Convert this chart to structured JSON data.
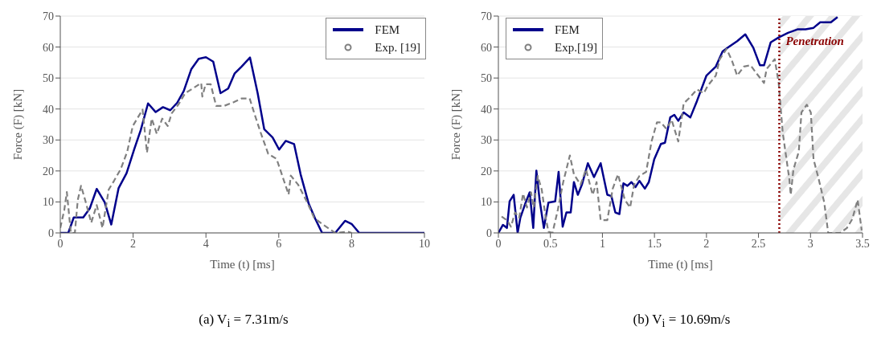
{
  "chart_data": [
    {
      "type": "line",
      "title": "(a) V$_{i}$ = 7.31m/s",
      "xlabel": "Time (t) [ms]",
      "ylabel": "Force (F) [kN]",
      "xlim": [
        0,
        10
      ],
      "xticks": [
        0,
        2,
        4,
        6,
        8,
        10
      ],
      "ylim": [
        0,
        70
      ],
      "yticks": [
        0,
        10,
        20,
        30,
        40,
        50,
        60,
        70
      ],
      "grid": "y",
      "legend": "top right",
      "series": [
        {
          "name": "FEM",
          "color": "#00008b",
          "line_style": "solid",
          "x": [
            0,
            0.22,
            0.37,
            0.63,
            0.81,
            1.0,
            1.22,
            1.4,
            1.6,
            1.82,
            2.03,
            2.21,
            2.41,
            2.62,
            2.82,
            3.02,
            3.21,
            3.39,
            3.6,
            3.8,
            4.0,
            4.2,
            4.4,
            4.61,
            4.79,
            4.98,
            5.21,
            5.42,
            5.6,
            5.83,
            6.01,
            6.19,
            6.42,
            6.6,
            6.82,
            7.0,
            7.19,
            7.55,
            7.82,
            8.0,
            8.21,
            10
          ],
          "values": [
            0,
            0,
            5,
            5,
            7.9,
            14.2,
            9.9,
            2.7,
            14.4,
            19.3,
            27,
            33.2,
            41.8,
            39,
            40.6,
            39.6,
            42,
            45.8,
            52.9,
            56.2,
            56.7,
            55.3,
            45.1,
            46.6,
            51.5,
            53.7,
            56.6,
            45.1,
            33.5,
            30.8,
            26.9,
            29.7,
            28.7,
            18.9,
            9.5,
            4.6,
            0,
            0,
            3.9,
            2.9,
            0,
            0
          ]
        },
        {
          "name": "Exp. [19]",
          "color": "#808080",
          "line_style": "dashed",
          "x": [
            0,
            0.11,
            0.18,
            0.29,
            0.4,
            0.48,
            0.57,
            0.7,
            0.85,
            1.0,
            1.16,
            1.33,
            1.48,
            1.66,
            1.84,
            1.99,
            2.26,
            2.38,
            2.51,
            2.65,
            2.8,
            2.95,
            3.06,
            3.24,
            3.43,
            3.65,
            3.87,
            3.9,
            3.99,
            4.13,
            4.28,
            4.5,
            4.76,
            4.98,
            5.2,
            5.35,
            5.49,
            5.71,
            5.94,
            6.08,
            6.27,
            6.33,
            6.53,
            6.78,
            6.97,
            7.19,
            7.55,
            7.9,
            8.0
          ],
          "values": [
            1.6,
            7.4,
            13.2,
            0,
            0,
            10.6,
            15.2,
            9.9,
            3.3,
            9,
            1.6,
            14,
            16.9,
            20.6,
            26.3,
            34.5,
            39.8,
            25.9,
            36.9,
            32,
            36.9,
            34.5,
            38.6,
            41.4,
            45.1,
            46.7,
            48.4,
            44,
            48,
            48,
            41,
            41,
            42.2,
            43.4,
            43.4,
            37.8,
            32.8,
            25.5,
            23.9,
            19,
            12.4,
            18.5,
            15.6,
            9.9,
            4.9,
            2.9,
            0,
            0.4,
            0
          ]
        }
      ]
    },
    {
      "type": "line",
      "title": "(b) V$_{i}$ = 10.69m/s",
      "xlabel": "Time (t) [ms]",
      "ylabel": "Force (F) [kN]",
      "xlim": [
        0,
        3.5
      ],
      "xticks": [
        0,
        0.5,
        1,
        1.5,
        2,
        2.5,
        3,
        3.5
      ],
      "ylim": [
        0,
        70
      ],
      "yticks": [
        0,
        10,
        20,
        30,
        40,
        50,
        60,
        70
      ],
      "grid": "y",
      "legend": "top left",
      "ref_lines": [
        {
          "axis": "x",
          "value": 2.7,
          "label": "Penetration",
          "color": "#8b0000",
          "line_style": "dotted"
        }
      ],
      "bands": [
        {
          "axis": "x",
          "from": 2.7,
          "to": 3.5,
          "color": "#e6e6e6"
        }
      ],
      "series": [
        {
          "name": "FEM",
          "color": "#00008b",
          "line_style": "solid",
          "x": [
            0,
            0.044,
            0.082,
            0.108,
            0.147,
            0.185,
            0.211,
            0.262,
            0.301,
            0.335,
            0.365,
            0.396,
            0.437,
            0.481,
            0.546,
            0.579,
            0.618,
            0.654,
            0.695,
            0.726,
            0.764,
            0.803,
            0.86,
            0.919,
            0.983,
            1.047,
            1.086,
            1.124,
            1.163,
            1.202,
            1.24,
            1.279,
            1.318,
            1.356,
            1.408,
            1.446,
            1.498,
            1.562,
            1.601,
            1.652,
            1.691,
            1.729,
            1.781,
            1.845,
            1.909,
            2.0,
            2.09,
            2.155,
            2.205,
            2.295,
            2.373,
            2.45,
            2.514,
            2.553,
            2.617,
            2.694,
            2.784,
            2.874,
            2.952,
            3.029,
            3.093,
            3.196,
            3.26
          ],
          "values": [
            0,
            2.6,
            1.6,
            10.2,
            12.3,
            0,
            4.9,
            9.8,
            13.1,
            1.6,
            20.1,
            10.7,
            1.6,
            9.8,
            10.2,
            19.7,
            2,
            6.6,
            6.6,
            16.4,
            12.3,
            15.6,
            22.5,
            18,
            22.5,
            12.3,
            11.9,
            6.6,
            6.1,
            16,
            15.2,
            16.4,
            14.8,
            16.8,
            14.3,
            16.4,
            23.8,
            28.7,
            29.1,
            37.3,
            38.1,
            36.2,
            38.9,
            37.3,
            42.6,
            50.8,
            53.7,
            58.6,
            59.8,
            61.9,
            64.1,
            59.8,
            54.1,
            54.1,
            61.5,
            63.1,
            64.6,
            65.7,
            65.7,
            66.2,
            68,
            68,
            69.7
          ]
        },
        {
          "name": "Exp.[19]",
          "color": "#808080",
          "line_style": "dashed",
          "x": [
            0.031,
            0.082,
            0.121,
            0.16,
            0.2,
            0.237,
            0.275,
            0.314,
            0.34,
            0.378,
            0.417,
            0.455,
            0.481,
            0.52,
            0.571,
            0.623,
            0.687,
            0.726,
            0.79,
            0.842,
            0.906,
            0.944,
            0.983,
            1.047,
            1.099,
            1.15,
            1.215,
            1.266,
            1.305,
            1.356,
            1.42,
            1.472,
            1.524,
            1.562,
            1.614,
            1.665,
            1.729,
            1.781,
            1.845,
            1.909,
            1.974,
            2.012,
            2.09,
            2.128,
            2.193,
            2.244,
            2.295,
            2.36,
            2.424,
            2.488,
            2.553,
            2.578,
            2.656,
            2.694,
            2.72,
            2.733,
            2.759,
            2.797,
            2.81,
            2.836,
            2.887,
            2.913,
            2.964,
            3.003,
            3.029,
            3.08,
            3.132,
            3.17,
            3.286,
            3.35,
            3.402,
            3.453,
            3.492
          ],
          "values": [
            5.3,
            4.1,
            2,
            6.6,
            4.9,
            12.7,
            8.2,
            13.1,
            8.2,
            18.4,
            13.9,
            4.9,
            0.4,
            0,
            7.4,
            16.4,
            25,
            18.9,
            15.6,
            20.5,
            12.3,
            16.4,
            4.1,
            4.1,
            14.3,
            18.9,
            10.7,
            8.2,
            15.6,
            18.4,
            19.7,
            29.5,
            35.7,
            35.7,
            33.6,
            36.5,
            29.5,
            41.8,
            43.9,
            46.3,
            45.1,
            47.5,
            50.8,
            56.1,
            59.4,
            55.7,
            50.8,
            53.7,
            54.1,
            51.2,
            48.4,
            52.9,
            56.1,
            48.4,
            37.7,
            32.4,
            26.2,
            17.2,
            12.3,
            20.5,
            26.2,
            38.9,
            41.4,
            38.9,
            23.8,
            17.2,
            9.8,
            0,
            0,
            1.6,
            4.5,
            10.7,
            0.8
          ]
        }
      ]
    }
  ]
}
